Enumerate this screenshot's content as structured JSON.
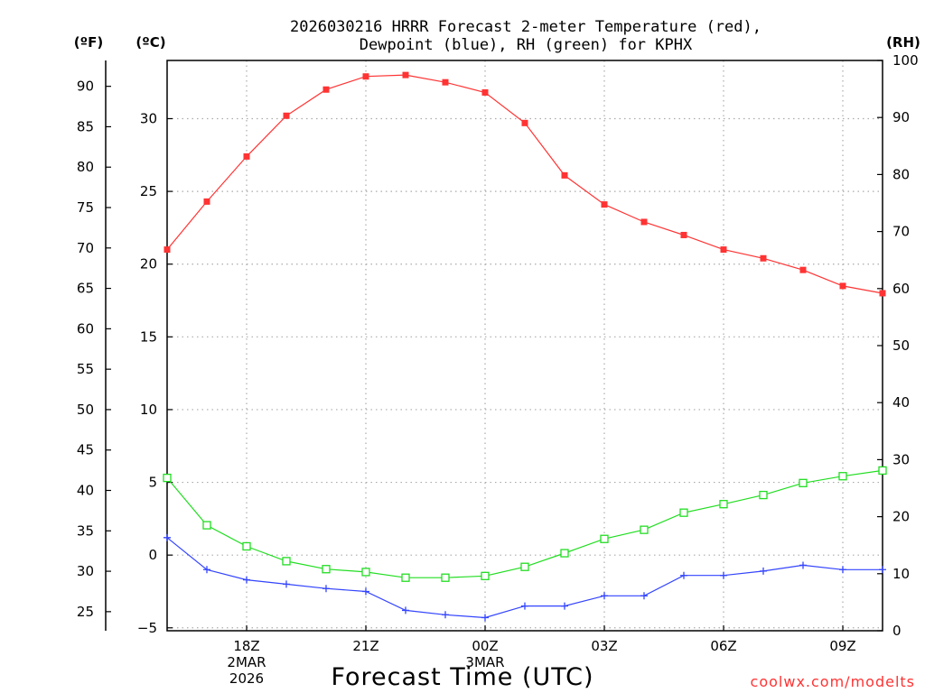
{
  "chart_data": {
    "type": "line",
    "title_line1": "2026030216 HRRR Forecast 2-meter Temperature (red),",
    "title_line2": "Dewpoint (blue), RH (green) for KPHX",
    "xlabel": "Forecast Time (UTC)",
    "credit": "coolwx.com/modelts",
    "units": {
      "fahrenheit": "(ºF)",
      "celsius": "(ºC)",
      "rh": "(RH)"
    },
    "x_hours": [
      16,
      17,
      18,
      19,
      20,
      21,
      22,
      23,
      24,
      25,
      26,
      27,
      28,
      29,
      30,
      31,
      32,
      33,
      34
    ],
    "xlim": [
      16,
      34
    ],
    "x_ticks": [
      {
        "hour": 18,
        "lines": [
          "18Z",
          "2MAR",
          "2026"
        ]
      },
      {
        "hour": 21,
        "lines": [
          "21Z"
        ]
      },
      {
        "hour": 24,
        "lines": [
          "00Z",
          "3MAR"
        ]
      },
      {
        "hour": 27,
        "lines": [
          "03Z"
        ]
      },
      {
        "hour": 30,
        "lines": [
          "06Z"
        ]
      },
      {
        "hour": 33,
        "lines": [
          "09Z"
        ]
      }
    ],
    "celsius_axis": {
      "lim": [
        -5.2,
        34
      ],
      "ticks": [
        -5,
        0,
        5,
        10,
        15,
        20,
        25,
        30
      ]
    },
    "fahrenheit_axis": {
      "ticks": [
        25,
        30,
        35,
        40,
        45,
        50,
        55,
        60,
        65,
        70,
        75,
        80,
        85,
        90
      ]
    },
    "rh_axis": {
      "lim": [
        0,
        100
      ],
      "ticks": [
        0,
        10,
        20,
        30,
        40,
        50,
        60,
        70,
        80,
        90,
        100
      ]
    },
    "series": [
      {
        "name": "Temperature",
        "axis": "celsius",
        "color": "#ff3333",
        "marker": "filled-square",
        "values": [
          21.0,
          24.3,
          27.4,
          30.2,
          32.0,
          32.9,
          33.0,
          32.5,
          31.8,
          29.7,
          26.1,
          24.1,
          22.9,
          22.0,
          21.0,
          20.4,
          19.6,
          18.5,
          18.0
        ]
      },
      {
        "name": "Dewpoint",
        "axis": "celsius",
        "color": "#3344ff",
        "marker": "plus",
        "values": [
          1.2,
          -1.0,
          -1.7,
          -2.0,
          -2.3,
          -2.5,
          -3.8,
          -4.1,
          -4.3,
          -3.5,
          -3.5,
          -2.8,
          -2.8,
          -1.4,
          -1.4,
          -1.1,
          -0.7,
          -1.0,
          -1.0
        ]
      },
      {
        "name": "RH",
        "axis": "rh",
        "color": "#22dd22",
        "marker": "open-square",
        "values": [
          26.8,
          18.5,
          14.8,
          12.2,
          10.8,
          10.3,
          9.3,
          9.3,
          9.6,
          11.2,
          13.6,
          16.1,
          17.7,
          20.7,
          22.2,
          23.8,
          25.9,
          27.1,
          28.1
        ]
      }
    ]
  }
}
